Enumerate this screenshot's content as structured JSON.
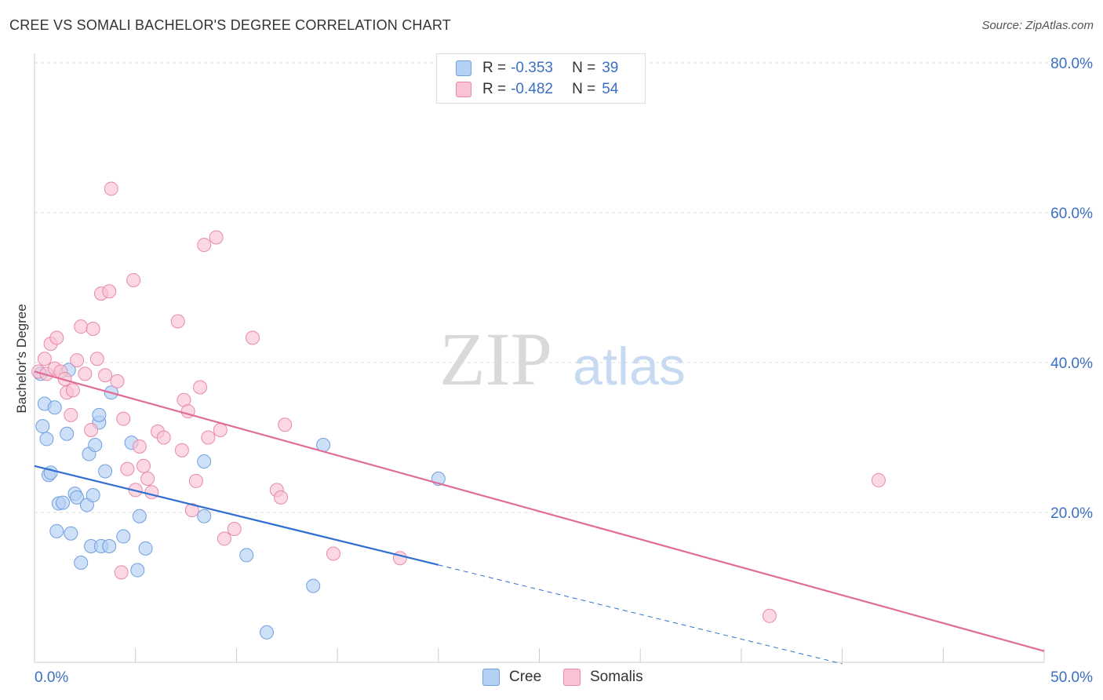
{
  "title": "CREE VS SOMALI BACHELOR'S DEGREE CORRELATION CHART",
  "source": "Source: ZipAtlas.com",
  "watermark": {
    "zip": "ZIP",
    "atlas": "atlas"
  },
  "legend": {
    "rows": [
      {
        "r_label": "R =",
        "r_value": "-0.353",
        "n_label": "N =",
        "n_value": "39",
        "color": "#b3d0f5",
        "border": "#6f9fe0"
      },
      {
        "r_label": "R =",
        "r_value": "-0.482",
        "n_label": "N =",
        "n_value": "54",
        "color": "#f9c3d4",
        "border": "#e88aa8"
      }
    ]
  },
  "bottom_legend": [
    {
      "label": "Cree",
      "color": "#b3d0f5",
      "border": "#6f9fe0"
    },
    {
      "label": "Somalis",
      "color": "#f9c3d4",
      "border": "#e88aa8"
    }
  ],
  "chart_data": {
    "type": "scatter",
    "title": "CREE VS SOMALI BACHELOR'S DEGREE CORRELATION CHART",
    "xlabel": "",
    "ylabel": "Bachelor's Degree",
    "xlim": [
      0,
      50
    ],
    "ylim": [
      0,
      80
    ],
    "x_tick_labels": [
      "0.0%",
      "50.0%"
    ],
    "y_ticks": [
      20,
      40,
      60,
      80
    ],
    "y_tick_labels": [
      "20.0%",
      "40.0%",
      "60.0%",
      "80.0%"
    ],
    "grid": true,
    "series": [
      {
        "name": "Cree",
        "color": "#6f9fe0",
        "fill": "#b3d0f5",
        "line_color": "#2f6fcf",
        "trend": {
          "x0": 0,
          "y0": 26.2,
          "x1": 20,
          "y1": 13.0,
          "dashed_to_x": 40
        },
        "points": [
          [
            0.3,
            38.5
          ],
          [
            0.4,
            31.5
          ],
          [
            0.5,
            34.5
          ],
          [
            0.6,
            29.8
          ],
          [
            0.7,
            25.0
          ],
          [
            0.8,
            25.3
          ],
          [
            1.0,
            34.0
          ],
          [
            1.1,
            17.5
          ],
          [
            1.2,
            21.2
          ],
          [
            1.4,
            21.3
          ],
          [
            1.6,
            30.5
          ],
          [
            1.7,
            39.0
          ],
          [
            1.8,
            17.2
          ],
          [
            2.0,
            22.5
          ],
          [
            2.1,
            22.0
          ],
          [
            2.3,
            13.3
          ],
          [
            2.6,
            21.0
          ],
          [
            2.7,
            27.8
          ],
          [
            2.8,
            15.5
          ],
          [
            2.9,
            22.3
          ],
          [
            3.0,
            29.0
          ],
          [
            3.2,
            32.0
          ],
          [
            3.2,
            33.0
          ],
          [
            3.3,
            15.5
          ],
          [
            3.5,
            25.5
          ],
          [
            3.7,
            15.5
          ],
          [
            3.8,
            36.0
          ],
          [
            4.4,
            16.8
          ],
          [
            4.8,
            29.3
          ],
          [
            5.1,
            12.3
          ],
          [
            5.2,
            19.5
          ],
          [
            5.5,
            15.2
          ],
          [
            8.4,
            26.8
          ],
          [
            8.4,
            19.5
          ],
          [
            10.5,
            14.3
          ],
          [
            11.5,
            4.0
          ],
          [
            13.8,
            10.2
          ],
          [
            14.3,
            29.0
          ],
          [
            20.0,
            24.5
          ]
        ]
      },
      {
        "name": "Somalis",
        "color": "#e88aa8",
        "fill": "#f9c3d4",
        "line_color": "#e06d96",
        "trend": {
          "x0": 0,
          "y0": 38.8,
          "x1": 50,
          "y1": 1.5
        },
        "points": [
          [
            0.2,
            38.8
          ],
          [
            0.5,
            40.5
          ],
          [
            0.6,
            38.5
          ],
          [
            0.8,
            42.5
          ],
          [
            1.0,
            39.2
          ],
          [
            1.1,
            43.3
          ],
          [
            1.3,
            38.8
          ],
          [
            1.5,
            37.8
          ],
          [
            1.6,
            36.0
          ],
          [
            1.8,
            33.0
          ],
          [
            1.9,
            36.3
          ],
          [
            2.1,
            40.3
          ],
          [
            2.3,
            44.8
          ],
          [
            2.5,
            38.5
          ],
          [
            2.8,
            31.0
          ],
          [
            2.9,
            44.5
          ],
          [
            3.1,
            40.5
          ],
          [
            3.3,
            49.2
          ],
          [
            3.5,
            38.3
          ],
          [
            3.7,
            49.5
          ],
          [
            3.8,
            63.2
          ],
          [
            4.1,
            37.5
          ],
          [
            4.3,
            12.0
          ],
          [
            4.4,
            32.5
          ],
          [
            4.6,
            25.8
          ],
          [
            4.9,
            51.0
          ],
          [
            5.0,
            23.0
          ],
          [
            5.2,
            28.8
          ],
          [
            5.4,
            26.2
          ],
          [
            5.6,
            24.5
          ],
          [
            5.8,
            22.7
          ],
          [
            6.1,
            30.8
          ],
          [
            6.4,
            30.0
          ],
          [
            7.1,
            45.5
          ],
          [
            7.3,
            28.3
          ],
          [
            7.4,
            35.0
          ],
          [
            7.6,
            33.5
          ],
          [
            7.8,
            20.3
          ],
          [
            8.0,
            24.2
          ],
          [
            8.2,
            36.7
          ],
          [
            8.4,
            55.7
          ],
          [
            8.6,
            30.0
          ],
          [
            9.0,
            56.7
          ],
          [
            9.2,
            31.0
          ],
          [
            9.4,
            16.5
          ],
          [
            9.9,
            17.8
          ],
          [
            10.8,
            43.3
          ],
          [
            12.0,
            23.0
          ],
          [
            12.2,
            22.0
          ],
          [
            12.4,
            31.7
          ],
          [
            14.8,
            14.5
          ],
          [
            18.1,
            13.9
          ],
          [
            36.4,
            6.2
          ],
          [
            41.8,
            24.3
          ]
        ]
      }
    ]
  }
}
